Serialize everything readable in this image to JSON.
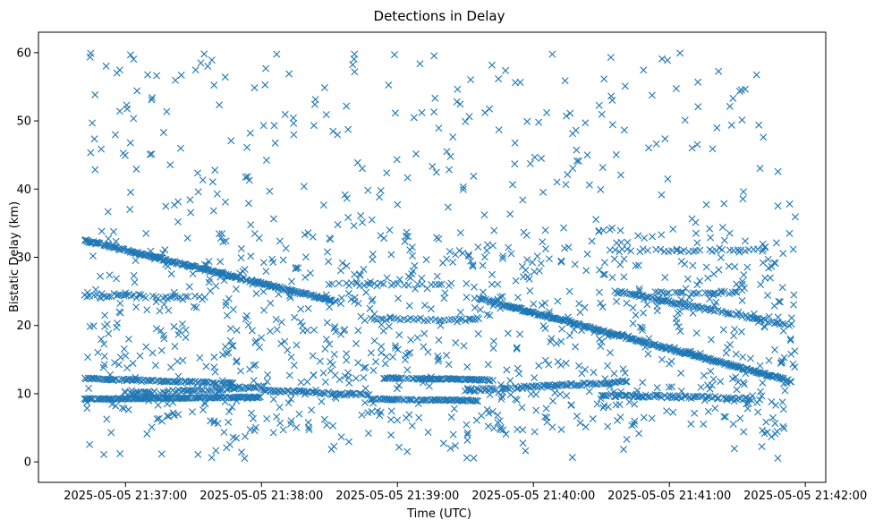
{
  "chart_data": {
    "type": "scatter",
    "title": "Detections in Delay",
    "xlabel": "Time (UTC)",
    "ylabel": "Bistatic Delay (km)",
    "marker": "x",
    "color": "#1f77b4",
    "grid": false,
    "x_unit": "minutes since 2025-05-05 21:37:00",
    "xlim": [
      -0.64,
      5.15
    ],
    "ylim": [
      -3,
      63
    ],
    "x_ticks": [
      {
        "value": 0,
        "label": "2025-05-05 21:37:00"
      },
      {
        "value": 1,
        "label": "2025-05-05 21:38:00"
      },
      {
        "value": 2,
        "label": "2025-05-05 21:39:00"
      },
      {
        "value": 3,
        "label": "2025-05-05 21:40:00"
      },
      {
        "value": 4,
        "label": "2025-05-05 21:41:00"
      },
      {
        "value": 5,
        "label": "2025-05-05 21:42:00"
      }
    ],
    "y_ticks": [
      {
        "value": 0,
        "label": "0"
      },
      {
        "value": 10,
        "label": "10"
      },
      {
        "value": 20,
        "label": "20"
      },
      {
        "value": 30,
        "label": "30"
      },
      {
        "value": 40,
        "label": "40"
      },
      {
        "value": 50,
        "label": "50"
      },
      {
        "value": 60,
        "label": "60"
      }
    ],
    "tracks": [
      {
        "name": "descending track A",
        "x_start": -0.3,
        "x_end": 1.55,
        "y_start": 32.5,
        "y_end": 23.5,
        "spacing": 0.008,
        "jitter": 0.15
      },
      {
        "name": "descending track B",
        "x_start": 2.6,
        "x_end": 4.9,
        "y_start": 24.0,
        "y_end": 11.8,
        "spacing": 0.008,
        "jitter": 0.15
      },
      {
        "name": "descending track C",
        "x_start": 3.6,
        "x_end": 4.9,
        "y_start": 25.0,
        "y_end": 20.0,
        "spacing": 0.012,
        "jitter": 0.2
      },
      {
        "name": "band ~9.3 km early",
        "x_start": -0.3,
        "x_end": 1.0,
        "y_start": 9.2,
        "y_end": 9.5,
        "spacing": 0.01,
        "jitter": 0.1
      },
      {
        "name": "band ~12 km early",
        "x_start": -0.3,
        "x_end": 0.8,
        "y_start": 12.2,
        "y_end": 11.5,
        "spacing": 0.012,
        "jitter": 0.15
      },
      {
        "name": "band ~10.5 km rising",
        "x_start": 0.0,
        "x_end": 1.0,
        "y_start": 10.0,
        "y_end": 11.0,
        "spacing": 0.014,
        "jitter": 0.2
      },
      {
        "name": "band ~10 km mid",
        "x_start": 1.0,
        "x_end": 1.8,
        "y_start": 10.5,
        "y_end": 9.8,
        "spacing": 0.012,
        "jitter": 0.2
      },
      {
        "name": "band ~9 km mid",
        "x_start": 1.8,
        "x_end": 2.6,
        "y_start": 9.2,
        "y_end": 9.0,
        "spacing": 0.012,
        "jitter": 0.1
      },
      {
        "name": "band ~12 km mid",
        "x_start": 1.9,
        "x_end": 2.7,
        "y_start": 12.3,
        "y_end": 12.0,
        "spacing": 0.01,
        "jitter": 0.1
      },
      {
        "name": "band ~10.8 km",
        "x_start": 2.5,
        "x_end": 3.7,
        "y_start": 10.5,
        "y_end": 11.8,
        "spacing": 0.014,
        "jitter": 0.2
      },
      {
        "name": "band ~9.6 km late",
        "x_start": 3.5,
        "x_end": 4.6,
        "y_start": 9.8,
        "y_end": 9.3,
        "spacing": 0.012,
        "jitter": 0.2
      },
      {
        "name": "band ~24.5 km early",
        "x_start": -0.3,
        "x_end": 0.6,
        "y_start": 24.5,
        "y_end": 24.0,
        "spacing": 0.018,
        "jitter": 0.3
      },
      {
        "name": "band ~26 km mid",
        "x_start": 1.5,
        "x_end": 2.4,
        "y_start": 26.0,
        "y_end": 26.0,
        "spacing": 0.025,
        "jitter": 0.2
      },
      {
        "name": "band ~21 km mid",
        "x_start": 1.8,
        "x_end": 2.6,
        "y_start": 21.0,
        "y_end": 20.8,
        "spacing": 0.025,
        "jitter": 0.2
      },
      {
        "name": "band ~31 km late",
        "x_start": 3.6,
        "x_end": 4.7,
        "y_start": 31.0,
        "y_end": 31.0,
        "spacing": 0.03,
        "jitter": 0.2
      },
      {
        "name": "band ~25 km late",
        "x_start": 3.9,
        "x_end": 4.5,
        "y_start": 24.8,
        "y_end": 24.8,
        "spacing": 0.02,
        "jitter": 0.2
      }
    ],
    "clutter": {
      "count": 560,
      "x_range": [
        -0.3,
        4.93
      ],
      "y_range": [
        0.5,
        60
      ],
      "seed": 7
    },
    "near_clutter": {
      "count": 620,
      "x_range": [
        -0.3,
        4.93
      ],
      "y_range": [
        4,
        34
      ],
      "seed": 13
    }
  }
}
